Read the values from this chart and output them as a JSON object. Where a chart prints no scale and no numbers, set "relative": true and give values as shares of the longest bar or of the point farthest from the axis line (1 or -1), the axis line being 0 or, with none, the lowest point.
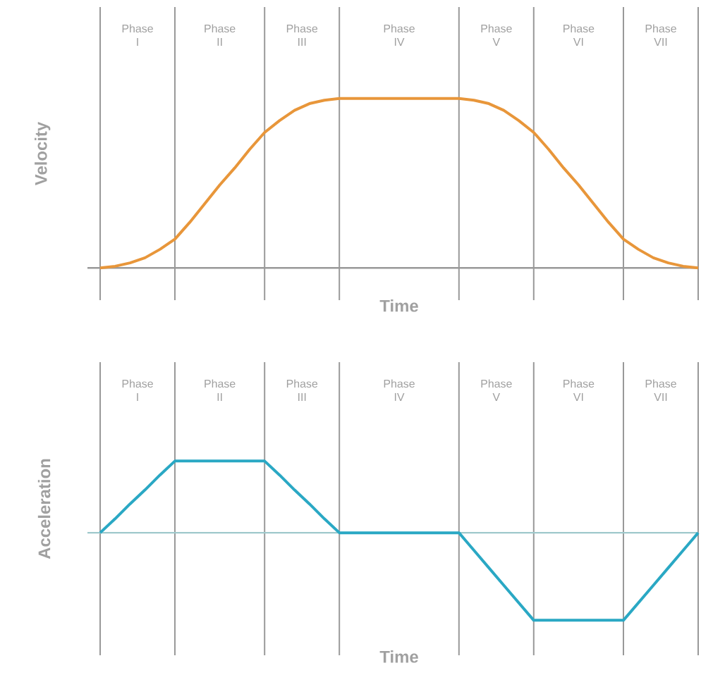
{
  "chart_data": [
    {
      "type": "line",
      "relative": true,
      "grid": "x",
      "xlabel": "Time",
      "ylabel": "Velocity",
      "categories": [
        null,
        null,
        null,
        null,
        null,
        null,
        null,
        null,
        null,
        null,
        null,
        null,
        null,
        null,
        null,
        null,
        null,
        null,
        null,
        null,
        null,
        null,
        null,
        null,
        null,
        null,
        null,
        null,
        null,
        null,
        null,
        null,
        null,
        null,
        null,
        null,
        null,
        null,
        null,
        null,
        null
      ],
      "series": [
        {
          "color": "#e8963a",
          "values": [
            0,
            0.01,
            0.03,
            0.06,
            0.11,
            0.17,
            0.27,
            0.38,
            0.49,
            0.59,
            0.7,
            0.8,
            0.87,
            0.93,
            0.97,
            0.99,
            1,
            1,
            1,
            1,
            1,
            1,
            1,
            1,
            1,
            0.99,
            0.97,
            0.93,
            0.87,
            0.8,
            0.7,
            0.59,
            0.49,
            0.38,
            0.27,
            0.17,
            0.11,
            0.06,
            0.03,
            0.01,
            0
          ]
        }
      ],
      "annotations": [
        "Phase I",
        "Phase II",
        "Phase III",
        "Phase IV",
        "Phase V",
        "Phase VI",
        "Phase VII"
      ]
    },
    {
      "type": "line",
      "relative": true,
      "grid": "x",
      "xlabel": "Time",
      "ylabel": "Acceleration",
      "ref_lines": [
        {
          "axis": "y",
          "value": 0,
          "color": "#9fc9cc"
        }
      ],
      "categories": [
        null,
        null,
        null,
        null,
        null,
        null,
        null,
        null,
        null,
        null,
        null,
        null,
        null,
        null,
        null,
        null,
        null,
        null,
        null,
        null,
        null,
        null,
        null,
        null,
        null,
        null,
        null,
        null,
        null,
        null,
        null,
        null,
        null,
        null,
        null,
        null,
        null,
        null,
        null,
        null,
        null
      ],
      "series": [
        {
          "color": "#2aa8c4",
          "values": [
            0,
            0.16,
            0.33,
            0.49,
            0.66,
            0.82,
            0.82,
            0.82,
            0.82,
            0.82,
            0.82,
            0.82,
            0.66,
            0.49,
            0.33,
            0.16,
            0,
            0,
            0,
            0,
            0,
            0,
            0,
            0,
            0,
            -0.2,
            -0.4,
            -0.6,
            -0.8,
            -1,
            -1,
            -1,
            -1,
            -1,
            -1,
            -1,
            -0.8,
            -0.6,
            -0.4,
            -0.2,
            0
          ]
        }
      ],
      "annotations": [
        "Phase I",
        "Phase II",
        "Phase III",
        "Phase IV",
        "Phase V",
        "Phase VI",
        "Phase VII"
      ]
    }
  ]
}
